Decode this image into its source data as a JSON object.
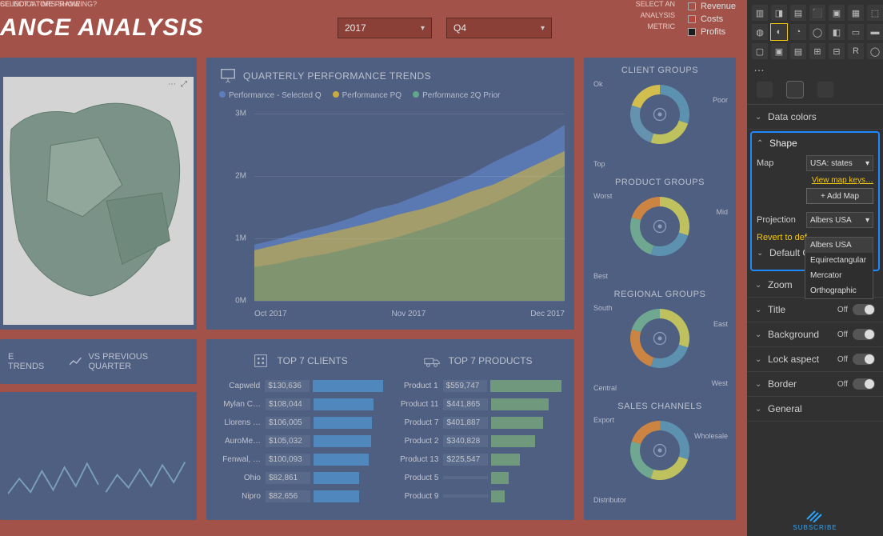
{
  "header": {
    "indicators_label": "CE INDICATORS SHOWING?",
    "title": "ANCE ANALYSIS",
    "timeframe_label": "SELECT A TIME FRAME",
    "year": "2017",
    "quarter": "Q4",
    "metric_label1": "SELECT AN",
    "metric_label2": "ANALYSIS",
    "metric_label3": "METRIC",
    "metrics": {
      "a": "Revenue",
      "b": "Costs",
      "c": "Profits"
    },
    "metric_colors": {
      "a": "#777777",
      "b": "#b04a3f",
      "c": "#1c1c1c"
    }
  },
  "trend": {
    "title": "QUARTERLY PERFORMANCE TRENDS",
    "legend": {
      "a": "Performance - Selected Q",
      "b": "Performance PQ",
      "c": "Performance 2Q Prior"
    },
    "legend_colors": {
      "a": "#6a8fd6",
      "b": "#e8c24a",
      "c": "#6fbfa0"
    },
    "y_ticks": [
      "3M",
      "2M",
      "1M",
      "0M"
    ],
    "x_ticks": [
      "Oct 2017",
      "Nov 2017",
      "Dec 2017"
    ],
    "area_top": [
      0.3,
      0.33,
      0.37,
      0.4,
      0.44,
      0.49,
      0.52,
      0.57,
      0.62,
      0.67,
      0.74,
      0.8,
      0.86,
      0.94
    ],
    "area_mid": [
      0.27,
      0.3,
      0.33,
      0.36,
      0.39,
      0.42,
      0.46,
      0.49,
      0.53,
      0.58,
      0.62,
      0.68,
      0.74,
      0.8
    ],
    "area_bottom": [
      0.18,
      0.2,
      0.23,
      0.25,
      0.28,
      0.31,
      0.34,
      0.38,
      0.42,
      0.47,
      0.52,
      0.58,
      0.65,
      0.72
    ],
    "colors": {
      "top": "#6a8fd6",
      "mid": "#c9b86b",
      "bottom": "#8aa780"
    }
  },
  "donuts": {
    "client": {
      "title": "CLIENT GROUPS",
      "labels": {
        "a": "Ok",
        "b": "Poor",
        "c": "Top"
      },
      "colors": [
        "#6aa6c9",
        "#d9dc6b",
        "#74a8c8",
        "#f0d95a"
      ]
    },
    "product": {
      "title": "PRODUCT GROUPS",
      "labels": {
        "a": "Worst",
        "b": "Mid",
        "c": "Best"
      },
      "colors": [
        "#d9dc6b",
        "#6aa6c9",
        "#7fbfa5",
        "#e8974a"
      ]
    },
    "regional": {
      "title": "REGIONAL GROUPS",
      "labels": {
        "a": "South",
        "b": "East",
        "c": "Central",
        "d": "West"
      },
      "colors": [
        "#d9dc6b",
        "#6aa6c9",
        "#e8974a",
        "#7fbfa5"
      ]
    },
    "sales": {
      "title": "SALES CHANNELS",
      "labels": {
        "a": "Export",
        "b": "Wholesale",
        "c": "Distributor"
      },
      "colors": [
        "#6aa6c9",
        "#d9dc6b",
        "#7fbfa5",
        "#e8974a"
      ]
    }
  },
  "clients": {
    "title": "TOP 7 CLIENTS",
    "bar_color": "#5c9bd8",
    "rows": [
      {
        "name": "Capweld",
        "value": "$130,636",
        "w": 1.0
      },
      {
        "name": "Mylan C…",
        "value": "$108,044",
        "w": 0.83
      },
      {
        "name": "Llorens …",
        "value": "$106,005",
        "w": 0.81
      },
      {
        "name": "AuroMe…",
        "value": "$105,032",
        "w": 0.8
      },
      {
        "name": "Fenwal, …",
        "value": "$100,093",
        "w": 0.77
      },
      {
        "name": "Ohio",
        "value": "$82,861",
        "w": 0.63
      },
      {
        "name": "Nipro",
        "value": "$82,656",
        "w": 0.63
      }
    ]
  },
  "products": {
    "title": "TOP 7 PRODUCTS",
    "bar_color": "#7fae8f",
    "rows": [
      {
        "name": "Product 1",
        "value": "$559,747",
        "w": 1.0
      },
      {
        "name": "Product 11",
        "value": "$441,865",
        "w": 0.79
      },
      {
        "name": "Product 7",
        "value": "$401,887",
        "w": 0.72
      },
      {
        "name": "Product 2",
        "value": "$340,828",
        "w": 0.61
      },
      {
        "name": "Product 13",
        "value": "$225,547",
        "w": 0.4
      },
      {
        "name": "Product 5",
        "value": "",
        "w": 0.24
      },
      {
        "name": "Product 9",
        "value": "",
        "w": 0.18
      }
    ]
  },
  "bottom_left": {
    "a": "E TRENDS",
    "b": "VS PREVIOUS QUARTER"
  },
  "panel": {
    "data_colors": "Data colors",
    "shape": "Shape",
    "map_label": "Map",
    "map_value": "USA: states",
    "view_keys": "View map keys…",
    "add_map": "+ Add Map",
    "projection_label": "Projection",
    "projection_value": "Albers USA",
    "projection_options": {
      "a": "Albers USA",
      "b": "Equirectangular",
      "c": "Mercator",
      "d": "Orthographic"
    },
    "revert": "Revert to def…",
    "default_c": "Default C…",
    "zoom": "Zoom",
    "title_section": "Title",
    "background": "Background",
    "lock_aspect": "Lock aspect",
    "border": "Border",
    "general": "General",
    "off": "Off",
    "subscribe": "SUBSCRIBE"
  }
}
